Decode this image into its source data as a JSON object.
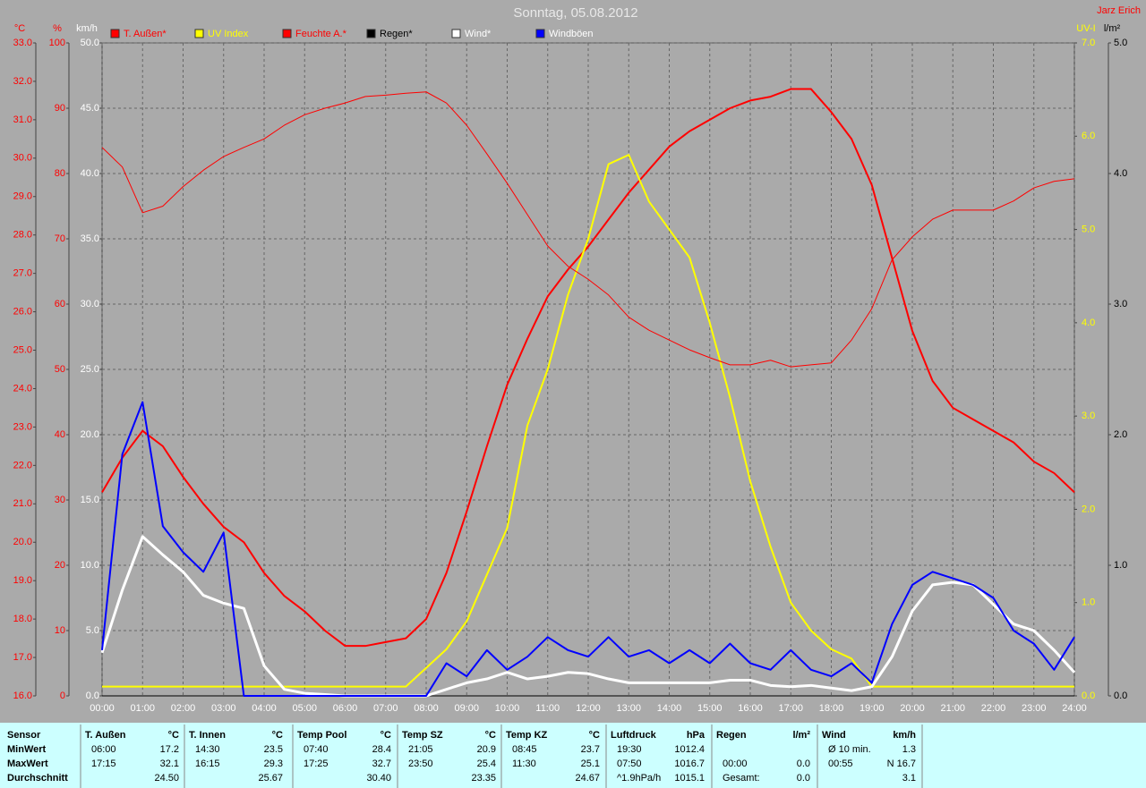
{
  "chart_data": {
    "type": "line",
    "title": "Sonntag, 05.08.2012",
    "author": "Jarz Erich",
    "axes": {
      "temp": {
        "label": "°C",
        "color": "#ff0000",
        "lim": [
          16,
          33
        ],
        "ticks": [
          {
            "value": 16,
            "label": "16.0"
          },
          {
            "value": 17,
            "label": "17.0"
          },
          {
            "value": 18,
            "label": "18.0"
          },
          {
            "value": 19,
            "label": "19.0"
          },
          {
            "value": 20,
            "label": "20.0"
          },
          {
            "value": 21,
            "label": "21.0"
          },
          {
            "value": 22,
            "label": "22.0"
          },
          {
            "value": 23,
            "label": "23.0"
          },
          {
            "value": 24,
            "label": "24.0"
          },
          {
            "value": 25,
            "label": "25.0"
          },
          {
            "value": 26,
            "label": "26.0"
          },
          {
            "value": 27,
            "label": "27.0"
          },
          {
            "value": 28,
            "label": "28.0"
          },
          {
            "value": 29,
            "label": "29.0"
          },
          {
            "value": 30,
            "label": "30.0"
          },
          {
            "value": 31,
            "label": "31.0"
          },
          {
            "value": 32,
            "label": "32.0"
          },
          {
            "value": 33,
            "label": "33.0"
          }
        ]
      },
      "hum": {
        "label": "%",
        "color": "#ff0000",
        "lim": [
          0,
          100
        ],
        "ticks": [
          0,
          10,
          20,
          30,
          40,
          50,
          60,
          70,
          80,
          90,
          100
        ]
      },
      "wind": {
        "label": "km/h",
        "color": "#ffffff",
        "lim": [
          0,
          50
        ],
        "ticks": [
          {
            "value": 0,
            "label": "0.0"
          },
          {
            "value": 5,
            "label": "5.0"
          },
          {
            "value": 10,
            "label": "10.0"
          },
          {
            "value": 15,
            "label": "15.0"
          },
          {
            "value": 20,
            "label": "20.0"
          },
          {
            "value": 25,
            "label": "25.0"
          },
          {
            "value": 30,
            "label": "30.0"
          },
          {
            "value": 35,
            "label": "35.0"
          },
          {
            "value": 40,
            "label": "40.0"
          },
          {
            "value": 45,
            "label": "45.0"
          },
          {
            "value": 50,
            "label": "50.0"
          }
        ]
      },
      "uv": {
        "label": "UV-I",
        "color": "#ffff00",
        "lim": [
          0,
          7
        ],
        "ticks": [
          {
            "value": 0,
            "label": "0.0"
          },
          {
            "value": 1,
            "label": "1.0"
          },
          {
            "value": 2,
            "label": "2.0"
          },
          {
            "value": 3,
            "label": "3.0"
          },
          {
            "value": 4,
            "label": "4.0"
          },
          {
            "value": 5,
            "label": "5.0"
          },
          {
            "value": 6,
            "label": "6.0"
          },
          {
            "value": 7,
            "label": "7.0"
          }
        ]
      },
      "rain": {
        "label": "l/m²",
        "color": "#000000",
        "lim": [
          0,
          5
        ],
        "ticks": [
          {
            "value": 0,
            "label": "0.0"
          },
          {
            "value": 1,
            "label": "1.0"
          },
          {
            "value": 2,
            "label": "2.0"
          },
          {
            "value": 3,
            "label": "3.0"
          },
          {
            "value": 4,
            "label": "4.0"
          },
          {
            "value": 5,
            "label": "5.0"
          }
        ]
      }
    },
    "grid": true,
    "grid_axis": "wind",
    "xlim": [
      0,
      24
    ],
    "xticks": [
      {
        "value": 0,
        "label": "00:00"
      },
      {
        "value": 1,
        "label": "01:00"
      },
      {
        "value": 2,
        "label": "02:00"
      },
      {
        "value": 3,
        "label": "03:00"
      },
      {
        "value": 4,
        "label": "04:00"
      },
      {
        "value": 5,
        "label": "05:00"
      },
      {
        "value": 6,
        "label": "06:00"
      },
      {
        "value": 7,
        "label": "07:00"
      },
      {
        "value": 8,
        "label": "08:00"
      },
      {
        "value": 9,
        "label": "09:00"
      },
      {
        "value": 10,
        "label": "10:00"
      },
      {
        "value": 11,
        "label": "11:00"
      },
      {
        "value": 12,
        "label": "12:00"
      },
      {
        "value": 13,
        "label": "13:00"
      },
      {
        "value": 14,
        "label": "14:00"
      },
      {
        "value": 15,
        "label": "15:00"
      },
      {
        "value": 16,
        "label": "16:00"
      },
      {
        "value": 17,
        "label": "17:00"
      },
      {
        "value": 18,
        "label": "18:00"
      },
      {
        "value": 19,
        "label": "19:00"
      },
      {
        "value": 20,
        "label": "20:00"
      },
      {
        "value": 21,
        "label": "21:00"
      },
      {
        "value": 22,
        "label": "22:00"
      },
      {
        "value": 23,
        "label": "23:00"
      },
      {
        "value": 24,
        "label": "24:00"
      }
    ],
    "x": [
      0,
      0.5,
      1,
      1.5,
      2,
      2.5,
      3,
      3.5,
      4,
      4.5,
      5,
      5.5,
      6,
      6.5,
      7,
      7.5,
      8,
      8.5,
      9,
      9.5,
      10,
      10.5,
      11,
      11.5,
      12,
      12.5,
      13,
      13.5,
      14,
      14.5,
      15,
      15.5,
      16,
      16.5,
      17,
      17.5,
      18,
      18.5,
      19,
      19.5,
      20,
      20.5,
      21,
      21.5,
      22,
      22.5,
      23,
      23.5,
      24
    ],
    "series": [
      {
        "name": "T. Außen*",
        "color": "#ff0000",
        "axis": "temp",
        "width": 2,
        "values": [
          21.3,
          22.2,
          22.9,
          22.5,
          21.7,
          21.0,
          20.4,
          20.0,
          19.2,
          18.6,
          18.2,
          17.7,
          17.3,
          17.3,
          17.4,
          17.5,
          18.0,
          19.2,
          20.8,
          22.5,
          24.1,
          25.3,
          26.4,
          27.1,
          27.7,
          28.4,
          29.1,
          29.7,
          30.3,
          30.7,
          31.0,
          31.3,
          31.5,
          31.6,
          31.8,
          31.8,
          31.2,
          30.5,
          29.3,
          27.4,
          25.5,
          24.2,
          23.5,
          23.2,
          22.9,
          22.6,
          22.1,
          21.8,
          21.3
        ]
      },
      {
        "name": "UV Index",
        "color": "#ffff00",
        "axis": "uv",
        "width": 2,
        "values": [
          0.1,
          0.1,
          0.1,
          0.1,
          0.1,
          0.1,
          0.1,
          0.1,
          0.1,
          0.1,
          0.1,
          0.1,
          0.1,
          0.1,
          0.1,
          0.1,
          0.3,
          0.5,
          0.8,
          1.3,
          1.8,
          2.9,
          3.5,
          4.3,
          4.9,
          5.7,
          5.8,
          5.3,
          5.0,
          4.7,
          4.0,
          3.2,
          2.3,
          1.6,
          1.0,
          0.7,
          0.5,
          0.4,
          0.1,
          0.1,
          0.1,
          0.1,
          0.1,
          0.1,
          0.1,
          0.1,
          0.1,
          0.1,
          0.1
        ]
      },
      {
        "name": "Feuchte A.*",
        "color": "#ff0000",
        "axis": "hum",
        "width": 1,
        "values": [
          84,
          81,
          74,
          75,
          78,
          80.5,
          82.6,
          84,
          85.3,
          87.4,
          89,
          90,
          90.8,
          91.8,
          92,
          92.3,
          92.5,
          90.8,
          87.4,
          83,
          78.5,
          73.7,
          68.9,
          65.8,
          63.8,
          61.4,
          58,
          56,
          54.5,
          53,
          51.8,
          50.7,
          50.7,
          51.4,
          50.4,
          50.7,
          51,
          54.5,
          59.3,
          66.8,
          70.3,
          73,
          74.4,
          74.4,
          74.4,
          75.8,
          77.8,
          78.8,
          79.2
        ]
      },
      {
        "name": "Regen*",
        "color": "#000000",
        "axis": "rain",
        "width": 1,
        "values": [
          0,
          0,
          0,
          0,
          0,
          0,
          0,
          0,
          0,
          0,
          0,
          0,
          0,
          0,
          0,
          0,
          0,
          0,
          0,
          0,
          0,
          0,
          0,
          0,
          0,
          0,
          0,
          0,
          0,
          0,
          0,
          0,
          0,
          0,
          0,
          0,
          0,
          0,
          0,
          0,
          0,
          0,
          0,
          0,
          0,
          0,
          0,
          0,
          0
        ]
      },
      {
        "name": "Wind*",
        "color": "#ffffff",
        "axis": "wind",
        "width": 3,
        "values": [
          3.3,
          8.1,
          12.2,
          10.8,
          9.5,
          7.7,
          7.1,
          6.7,
          2.3,
          0.5,
          0.2,
          0.1,
          0,
          0,
          0,
          0,
          0,
          0.5,
          1,
          1.3,
          1.8,
          1.3,
          1.5,
          1.8,
          1.7,
          1.3,
          1,
          1,
          1,
          1,
          1,
          1.2,
          1.2,
          0.8,
          0.7,
          0.8,
          0.6,
          0.4,
          0.7,
          3,
          6.5,
          8.5,
          8.7,
          8.5,
          7,
          5.5,
          5,
          3.5,
          1.8
        ]
      },
      {
        "name": "Windböen",
        "color": "#0000ff",
        "axis": "wind",
        "width": 2,
        "values": [
          3.5,
          18.5,
          22.5,
          13,
          11,
          9.5,
          12.5,
          0,
          0,
          0,
          0,
          0,
          0,
          0,
          0,
          0,
          0,
          2.5,
          1.5,
          3.5,
          2,
          3,
          4.5,
          3.5,
          3,
          4.5,
          3,
          3.5,
          2.5,
          3.5,
          2.5,
          4,
          2.5,
          2,
          3.5,
          2,
          1.5,
          2.5,
          1,
          5.5,
          8.5,
          9.5,
          9,
          8.5,
          7.5,
          5,
          4,
          2,
          4.5
        ]
      }
    ]
  },
  "stats": {
    "row_labels": [
      "Sensor",
      "MinWert",
      "MaxWert",
      "Durchschnitt"
    ],
    "groups": [
      {
        "name": "T. Außen",
        "unit": "°C",
        "rows": [
          [
            "06:00",
            "17.2"
          ],
          [
            "17:15",
            "32.1"
          ],
          [
            null,
            "24.50"
          ]
        ]
      },
      {
        "name": "T. Innen",
        "unit": "°C",
        "rows": [
          [
            "14:30",
            "23.5"
          ],
          [
            "16:15",
            "29.3"
          ],
          [
            null,
            "25.67"
          ]
        ]
      },
      {
        "name": "Temp Pool",
        "unit": "°C",
        "rows": [
          [
            "07:40",
            "28.4"
          ],
          [
            "17:25",
            "32.7"
          ],
          [
            null,
            "30.40"
          ]
        ]
      },
      {
        "name": "Temp SZ",
        "unit": "°C",
        "rows": [
          [
            "21:05",
            "20.9"
          ],
          [
            "23:50",
            "25.4"
          ],
          [
            null,
            "23.35"
          ]
        ]
      },
      {
        "name": "Temp KZ",
        "unit": "°C",
        "rows": [
          [
            "08:45",
            "23.7"
          ],
          [
            "11:30",
            "25.1"
          ],
          [
            null,
            "24.67"
          ]
        ]
      },
      {
        "name": "Luftdruck",
        "unit": "hPa",
        "rows": [
          [
            "19:30",
            "1012.4"
          ],
          [
            "07:50",
            "1016.7"
          ],
          [
            "^1.9hPa/h",
            "1015.1"
          ]
        ]
      },
      {
        "name": "Regen",
        "unit": "l/m²",
        "rows": [
          [
            null,
            null
          ],
          [
            "00:00",
            "0.0"
          ],
          [
            "Gesamt:",
            "0.0"
          ]
        ]
      },
      {
        "name": "Wind",
        "unit": "km/h",
        "rows": [
          [
            "Ø 10 min.",
            "1.3"
          ],
          [
            "00:55",
            "N 16.7"
          ],
          [
            null,
            "3.1"
          ]
        ]
      }
    ]
  }
}
